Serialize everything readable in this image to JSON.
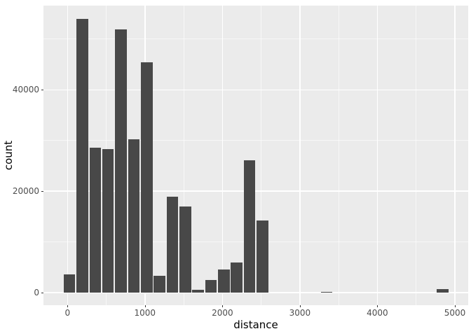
{
  "chart_data": {
    "type": "bar",
    "subtype": "histogram",
    "title": "",
    "xlabel": "distance",
    "ylabel": "count",
    "x_domain": [
      -310,
      5172
    ],
    "y_domain": [
      -2485,
      56605
    ],
    "x_major_ticks": [
      0,
      1000,
      2000,
      3000,
      4000,
      5000
    ],
    "x_tick_labels": [
      "0",
      "1000",
      "2000",
      "3000",
      "4000",
      "5000"
    ],
    "x_minor_ticks": [
      500,
      1500,
      2500,
      3500,
      4500
    ],
    "y_major_ticks": [
      0,
      20000,
      40000
    ],
    "y_tick_labels": [
      "0",
      "20000",
      "40000"
    ],
    "y_minor_ticks": [
      10000,
      30000,
      50000
    ],
    "bin_start": -57,
    "bin_width": 166,
    "counts": [
      3600,
      54000,
      28600,
      28300,
      51900,
      30200,
      45400,
      3300,
      18900,
      17000,
      500,
      2500,
      4600,
      5900,
      26100,
      14200,
      0,
      0,
      0,
      0,
      100,
      0,
      0,
      0,
      0,
      0,
      0,
      0,
      0,
      650
    ],
    "grid": "on",
    "legend": "none"
  },
  "style": {
    "figure_bg": "#FFFFFF",
    "panel_bg": "#EBEBEB",
    "bar_fill": "#484848",
    "grid_major_color": "#FFFFFF",
    "grid_minor_color": "rgba(255,255,255,0.6)",
    "tick_mark_color": "#333333",
    "tick_label_color": "#4D4D4D",
    "axis_title_color": "#000000"
  }
}
